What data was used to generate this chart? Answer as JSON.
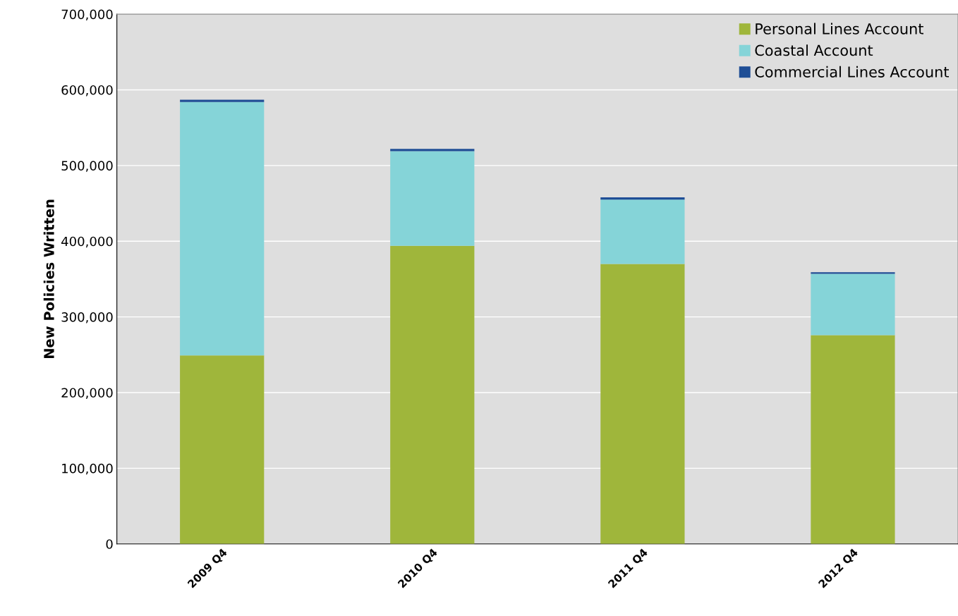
{
  "chart_data": {
    "type": "bar",
    "stacked": true,
    "ylabel": "New Policies Written",
    "categories": [
      "2009 Q4",
      "2010 Q4",
      "2011 Q4",
      "2012 Q4"
    ],
    "series": [
      {
        "name": "Personal Lines Account",
        "color": "#9fb63b",
        "values": [
          249000,
          394000,
          370000,
          276000
        ]
      },
      {
        "name": "Coastal Account",
        "color": "#85d4d8",
        "values": [
          335000,
          125000,
          85000,
          81000
        ]
      },
      {
        "name": "Commercial Lines Account",
        "color": "#1f4e96",
        "values": [
          3000,
          3000,
          3000,
          2000
        ]
      }
    ],
    "ylim": [
      0,
      700000
    ],
    "yticks": [
      {
        "value": 0,
        "label": "0"
      },
      {
        "value": 100000,
        "label": "100,000"
      },
      {
        "value": 200000,
        "label": "200,000"
      },
      {
        "value": 300000,
        "label": "300,000"
      },
      {
        "value": 400000,
        "label": "400,000"
      },
      {
        "value": 500000,
        "label": "500,000"
      },
      {
        "value": 600000,
        "label": "600,000"
      },
      {
        "value": 700000,
        "label": "700,000"
      }
    ],
    "grid": "y",
    "legend": "top right"
  }
}
